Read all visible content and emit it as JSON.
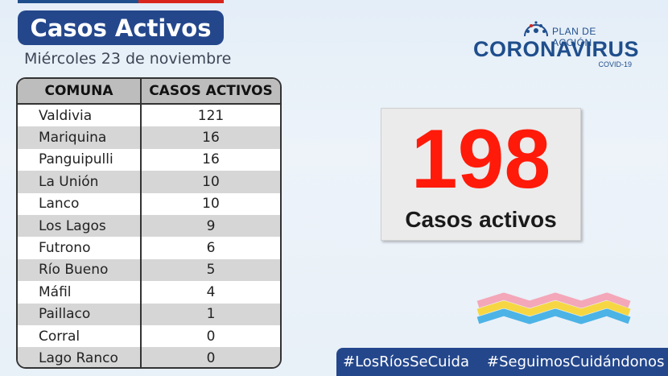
{
  "header": {
    "title": "Casos Activos",
    "date": "Miércoles 23 de noviembre"
  },
  "table": {
    "headers": [
      "COMUNA",
      "CASOS ACTIVOS"
    ],
    "rows": [
      {
        "comuna": "Valdivia",
        "casos": "121"
      },
      {
        "comuna": "Mariquina",
        "casos": "16"
      },
      {
        "comuna": "Panguipulli",
        "casos": "16"
      },
      {
        "comuna": "La Unión",
        "casos": "10"
      },
      {
        "comuna": "Lanco",
        "casos": "10"
      },
      {
        "comuna": "Los Lagos",
        "casos": "9"
      },
      {
        "comuna": "Futrono",
        "casos": "6"
      },
      {
        "comuna": "Río Bueno",
        "casos": "5"
      },
      {
        "comuna": "Máfil",
        "casos": "4"
      },
      {
        "comuna": "Paillaco",
        "casos": "1"
      },
      {
        "comuna": "Corral",
        "casos": "0"
      },
      {
        "comuna": "Lago Ranco",
        "casos": "0"
      }
    ]
  },
  "summary": {
    "total": "198",
    "label": "Casos activos"
  },
  "logo": {
    "plan": "PLAN DE ACCIÓN",
    "main": "CORONAVIRUS",
    "sub": "COVID-19"
  },
  "hashtags": [
    "#LosRíosSeCuida",
    "#SeguimosCuidándonos"
  ],
  "colors": {
    "brand_blue": "#24478c",
    "accent_red": "#ff1a0a",
    "wave_pink": "#f4a7b9",
    "wave_yellow": "#f6d743",
    "wave_blue": "#4cb3e6"
  }
}
